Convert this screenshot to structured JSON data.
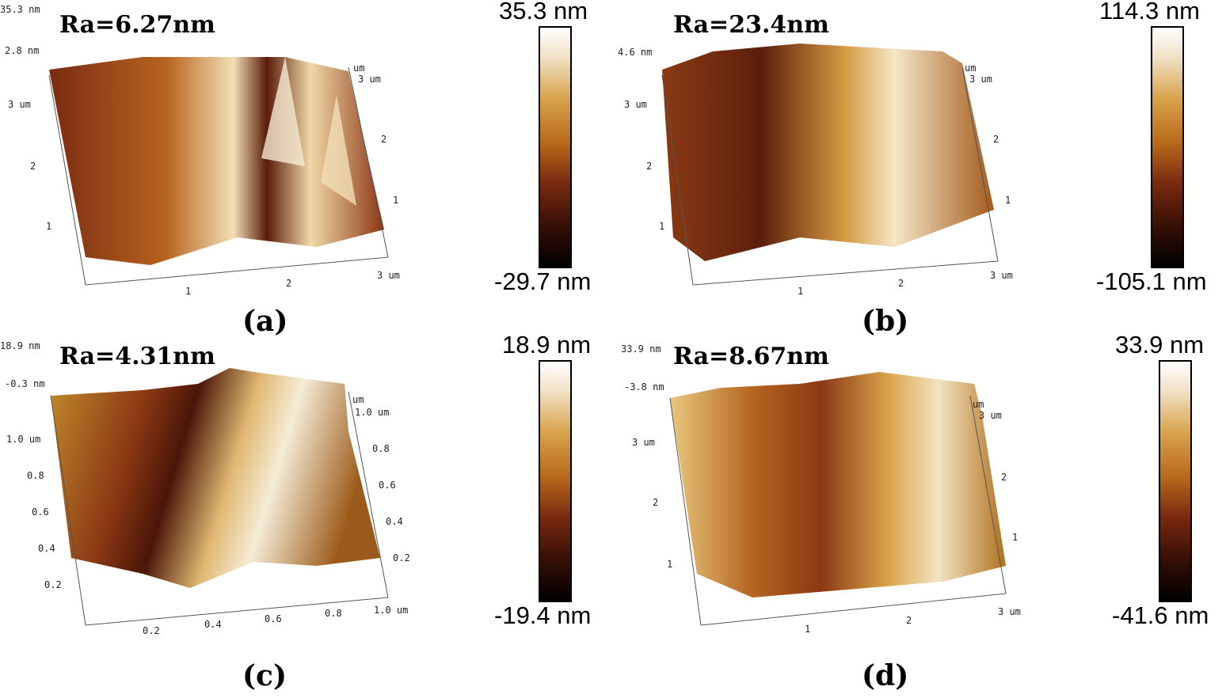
{
  "panels": [
    {
      "id": "a",
      "ra": "Ra=6.27nm",
      "caption": "(a)",
      "z_max": "35.3 nm",
      "z_min": "-29.7 nm",
      "z_axis_top": "35.3 nm",
      "z_axis_second": "2.8 nm",
      "y_left_labels": [
        "3 um",
        "2",
        "1"
      ],
      "y_right_labels": [
        "um",
        "3 um",
        "2",
        "1"
      ],
      "x_labels": [
        "1",
        "2",
        "3 um"
      ]
    },
    {
      "id": "b",
      "ra": "Ra=23.4nm",
      "caption": "(b)",
      "z_max": "114.3 nm",
      "z_min": "-105.1 nm",
      "z_axis_top": "",
      "z_axis_second": "4.6 nm",
      "y_left_labels": [
        "3 um",
        "2",
        "1"
      ],
      "y_right_labels": [
        "um",
        "3 um",
        "2",
        "1"
      ],
      "x_labels": [
        "1",
        "2",
        "3 um"
      ]
    },
    {
      "id": "c",
      "ra": "Ra=4.31nm",
      "caption": "(c)",
      "z_max": "18.9 nm",
      "z_min": "-19.4 nm",
      "z_axis_top": "18.9 nm",
      "z_axis_second": "-0.3 nm",
      "y_left_labels": [
        "1.0 um",
        "0.8",
        "0.6",
        "0.4",
        "0.2"
      ],
      "y_right_labels": [
        "um",
        "1.0 um",
        "0.8",
        "0.6",
        "0.4",
        "0.2"
      ],
      "x_labels": [
        "0.2",
        "0.4",
        "0.6",
        "0.8",
        "1.0 um"
      ]
    },
    {
      "id": "d",
      "ra": "Ra=8.67nm",
      "caption": "(d)",
      "z_max": "33.9 nm",
      "z_min": "-41.6 nm",
      "z_axis_top": "33.9 nm",
      "z_axis_second": "-3.8 nm",
      "y_left_labels": [
        "3 um",
        "2",
        "1"
      ],
      "y_right_labels": [
        "um",
        "3 um",
        "2",
        "1"
      ],
      "x_labels": [
        "1",
        "2",
        "3 um"
      ]
    }
  ]
}
